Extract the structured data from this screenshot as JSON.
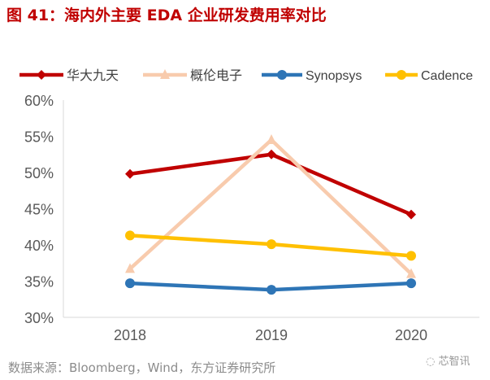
{
  "title": "图 41：海内外主要 EDA 企业研发费用率对比",
  "source": "数据来源：Bloomberg，Wind，东方证券研究所",
  "watermark": "芯智讯",
  "chart_data": {
    "type": "line",
    "categories": [
      "2018",
      "2019",
      "2020"
    ],
    "ylim": [
      0.3,
      0.6
    ],
    "yticks": [
      "30%",
      "35%",
      "40%",
      "45%",
      "50%",
      "55%",
      "60%"
    ],
    "grid": false,
    "legend": "top",
    "series": [
      {
        "name": "华大九天",
        "values": [
          0.498,
          0.525,
          0.442
        ],
        "color": "#c00000",
        "marker": "diamond"
      },
      {
        "name": "概伦电子",
        "values": [
          0.367,
          0.545,
          0.36
        ],
        "color": "#f8cbad",
        "marker": "triangle"
      },
      {
        "name": "Synopsys",
        "values": [
          0.347,
          0.338,
          0.347
        ],
        "color": "#2e75b6",
        "marker": "circle"
      },
      {
        "name": "Cadence",
        "values": [
          0.413,
          0.401,
          0.385
        ],
        "color": "#ffc000",
        "marker": "circle"
      }
    ]
  }
}
